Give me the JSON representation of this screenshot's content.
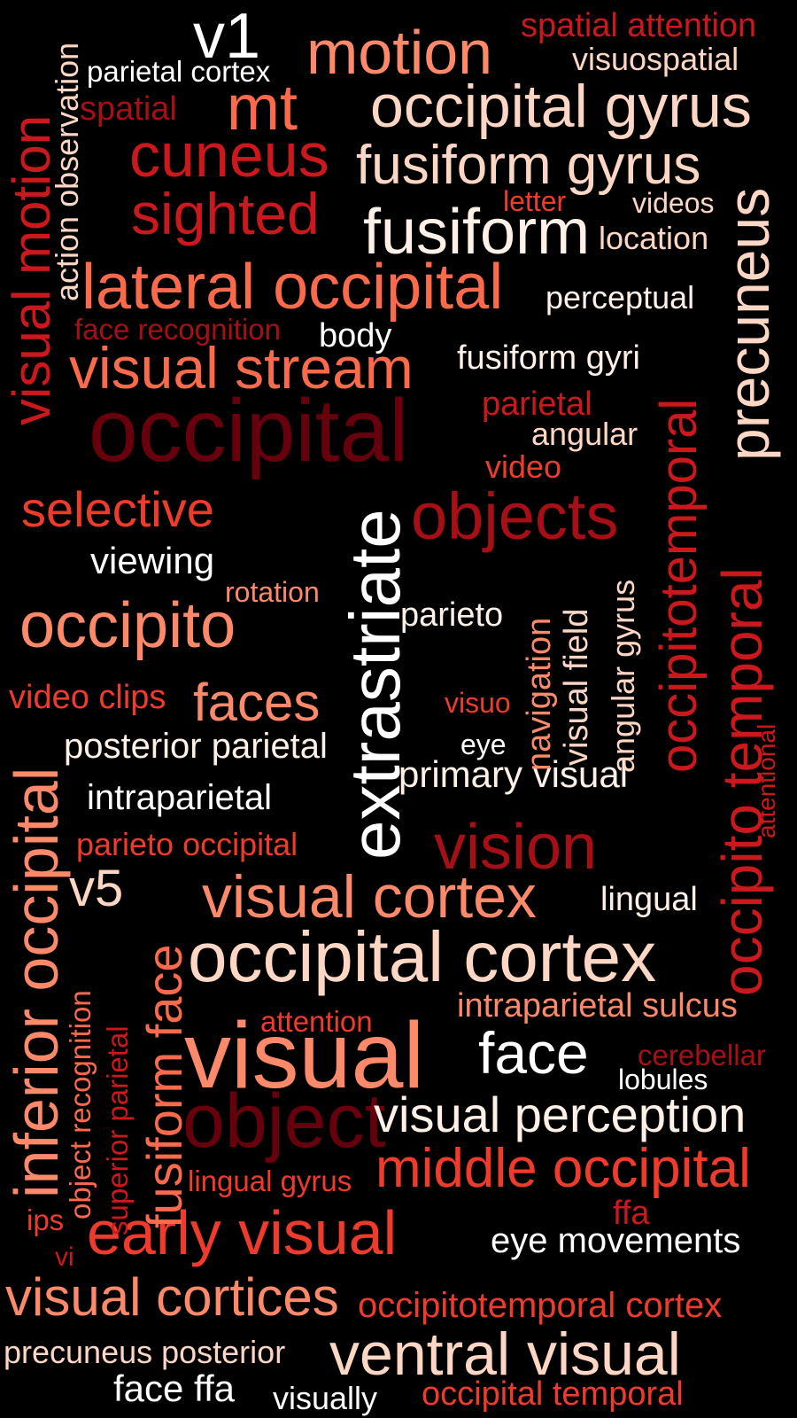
{
  "palette": {
    "background": "#000000",
    "white": "#ffffff",
    "cream": "#fff1e8",
    "peach": "#fdd6c4",
    "salmon": "#fc8a6a",
    "coral": "#fb6a4a",
    "orange_red": "#ef3b2c",
    "red": "#cb181d",
    "crimson": "#a50f15",
    "dark_red": "#67000d"
  },
  "words": [
    {
      "text": "v1",
      "color": "#ffffff"
    },
    {
      "text": "motion",
      "color": "#fc8a6a"
    },
    {
      "text": "spatial attention",
      "color": "#cb181d"
    },
    {
      "text": "visuospatial",
      "color": "#fdd6c4"
    },
    {
      "text": "parietal cortex",
      "color": "#ffffff"
    },
    {
      "text": "mt",
      "color": "#fb6a4a"
    },
    {
      "text": "occipital gyrus",
      "color": "#fdd6c4"
    },
    {
      "text": "spatial",
      "color": "#a50f15"
    },
    {
      "text": "cuneus",
      "color": "#cb181d"
    },
    {
      "text": "fusiform gyrus",
      "color": "#fdd6c4"
    },
    {
      "text": "sighted",
      "color": "#cb181d"
    },
    {
      "text": "letter",
      "color": "#ef3b2c"
    },
    {
      "text": "videos",
      "color": "#fdd6c4"
    },
    {
      "text": "fusiform",
      "color": "#fff1e8"
    },
    {
      "text": "location",
      "color": "#fdd6c4"
    },
    {
      "text": "lateral occipital",
      "color": "#fb6a4a"
    },
    {
      "text": "perceptual",
      "color": "#fff1e8"
    },
    {
      "text": "face recognition",
      "color": "#a50f15"
    },
    {
      "text": "body",
      "color": "#ffffff"
    },
    {
      "text": "visual stream",
      "color": "#fb6a4a"
    },
    {
      "text": "fusiform gyri",
      "color": "#fff1e8"
    },
    {
      "text": "occipital",
      "color": "#67000d"
    },
    {
      "text": "parietal",
      "color": "#cb181d"
    },
    {
      "text": "angular",
      "color": "#fdd6c4"
    },
    {
      "text": "video",
      "color": "#ef3b2c"
    },
    {
      "text": "selective",
      "color": "#ef3b2c"
    },
    {
      "text": "objects",
      "color": "#a50f15"
    },
    {
      "text": "viewing",
      "color": "#ffffff"
    },
    {
      "text": "rotation",
      "color": "#fc8a6a"
    },
    {
      "text": "occipito",
      "color": "#fc8a6a"
    },
    {
      "text": "parieto",
      "color": "#fff1e8"
    },
    {
      "text": "video clips",
      "color": "#ef3b2c"
    },
    {
      "text": "faces",
      "color": "#fc8a6a"
    },
    {
      "text": "visuo",
      "color": "#ef3b2c"
    },
    {
      "text": "posterior parietal",
      "color": "#fff1e8"
    },
    {
      "text": "eye",
      "color": "#ffffff"
    },
    {
      "text": "primary visual",
      "color": "#fff1e8"
    },
    {
      "text": "intraparietal",
      "color": "#ffffff"
    },
    {
      "text": "parieto occipital",
      "color": "#ef3b2c"
    },
    {
      "text": "vision",
      "color": "#a50f15"
    },
    {
      "text": "v5",
      "color": "#fdd6c4"
    },
    {
      "text": "visual cortex",
      "color": "#fc8a6a"
    },
    {
      "text": "lingual",
      "color": "#fff1e8"
    },
    {
      "text": "occipital cortex",
      "color": "#fdd6c4"
    },
    {
      "text": "intraparietal sulcus",
      "color": "#fc8a6a"
    },
    {
      "text": "attention",
      "color": "#ef3b2c"
    },
    {
      "text": "visual",
      "color": "#fc8a6a"
    },
    {
      "text": "face",
      "color": "#ffffff"
    },
    {
      "text": "cerebellar",
      "color": "#a50f15"
    },
    {
      "text": "lobules",
      "color": "#ffffff"
    },
    {
      "text": "object",
      "color": "#67000d"
    },
    {
      "text": "visual perception",
      "color": "#fff1e8"
    },
    {
      "text": "lingual gyrus",
      "color": "#ef3b2c"
    },
    {
      "text": "middle occipital",
      "color": "#ef3b2c"
    },
    {
      "text": "ips",
      "color": "#ef3b2c"
    },
    {
      "text": "ffa",
      "color": "#cb181d"
    },
    {
      "text": "vi",
      "color": "#cb181d"
    },
    {
      "text": "early visual",
      "color": "#ef3b2c"
    },
    {
      "text": "eye movements",
      "color": "#ffffff"
    },
    {
      "text": "visual cortices",
      "color": "#fc8a6a"
    },
    {
      "text": "occipitotemporal cortex",
      "color": "#ef3b2c"
    },
    {
      "text": "precuneus posterior",
      "color": "#fdd6c4"
    },
    {
      "text": "ventral visual",
      "color": "#fdd6c4"
    },
    {
      "text": "face ffa",
      "color": "#ffffff"
    },
    {
      "text": "visually",
      "color": "#ffffff"
    },
    {
      "text": "occipital temporal",
      "color": "#ef3b2c"
    },
    {
      "text": "action observation",
      "color": "#fdd6c4"
    },
    {
      "text": "visual motion",
      "color": "#cb181d"
    },
    {
      "text": "precuneus",
      "color": "#fdd6c4"
    },
    {
      "text": "occipitotemporal",
      "color": "#cb181d"
    },
    {
      "text": "extrastriate",
      "color": "#ffffff"
    },
    {
      "text": "navigation",
      "color": "#fc8a6a"
    },
    {
      "text": "visual field",
      "color": "#fdd6c4"
    },
    {
      "text": "angular gyrus",
      "color": "#fdd6c4"
    },
    {
      "text": "occipito temporal",
      "color": "#cb181d"
    },
    {
      "text": "attentional",
      "color": "#cb181d"
    },
    {
      "text": "inferior occipital",
      "color": "#fc8a6a"
    },
    {
      "text": "object recognition",
      "color": "#fb6a4a"
    },
    {
      "text": "superior parietal",
      "color": "#cb181d"
    },
    {
      "text": "fusiform face",
      "color": "#fb6a4a"
    }
  ]
}
